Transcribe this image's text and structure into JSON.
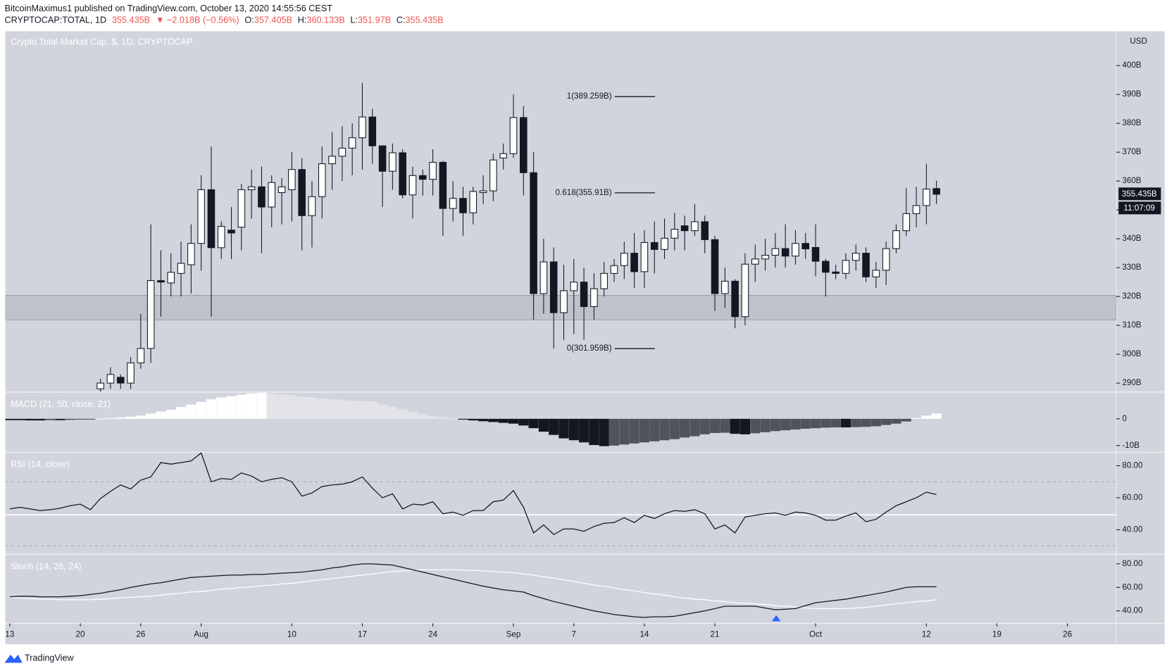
{
  "header": {
    "publisher": "BitcoinMaximus1 published on TradingView.com, October 13, 2020 14:55:56 CEST",
    "symbol": "CRYPTOCAP:TOTAL, 1D",
    "last": "355.435B",
    "change": "▼ −2.018B (−0.56%)",
    "ohlc": [
      {
        "key": "O:",
        "value": "357.405B"
      },
      {
        "key": "H:",
        "value": "360.133B"
      },
      {
        "key": "L:",
        "value": "351.97B"
      },
      {
        "key": "C:",
        "value": "355.435B"
      }
    ]
  },
  "footer": {
    "brand": "TradingView"
  },
  "chart_data": [
    {
      "type": "candlestick",
      "title": "Crypto Total Market Cap, $, 1D, CRYPTOCAP",
      "currency": "USD",
      "x": [
        "Jul 13",
        "Jul 14",
        "Jul 15",
        "Jul 16",
        "Jul 17",
        "Jul 18",
        "Jul 19",
        "Jul 20",
        "Jul 21",
        "Jul 22",
        "Jul 23",
        "Jul 24",
        "Jul 25",
        "Jul 26",
        "Jul 27",
        "Jul 28",
        "Jul 29",
        "Jul 30",
        "Jul 31",
        "Aug 1",
        "Aug 2",
        "Aug 3",
        "Aug 4",
        "Aug 5",
        "Aug 6",
        "Aug 7",
        "Aug 8",
        "Aug 9",
        "Aug 10",
        "Aug 11",
        "Aug 12",
        "Aug 13",
        "Aug 14",
        "Aug 15",
        "Aug 16",
        "Aug 17",
        "Aug 18",
        "Aug 19",
        "Aug 20",
        "Aug 21",
        "Aug 22",
        "Aug 23",
        "Aug 24",
        "Aug 25",
        "Aug 26",
        "Aug 27",
        "Aug 28",
        "Aug 29",
        "Aug 30",
        "Aug 31",
        "Sep 1",
        "Sep 2",
        "Sep 3",
        "Sep 4",
        "Sep 5",
        "Sep 6",
        "Sep 7",
        "Sep 8",
        "Sep 9",
        "Sep 10",
        "Sep 11",
        "Sep 12",
        "Sep 13",
        "Sep 14",
        "Sep 15",
        "Sep 16",
        "Sep 17",
        "Sep 18",
        "Sep 19",
        "Sep 20",
        "Sep 21",
        "Sep 22",
        "Sep 23",
        "Sep 24",
        "Sep 25",
        "Sep 26",
        "Sep 27",
        "Sep 28",
        "Sep 29",
        "Sep 30",
        "Oct 1",
        "Oct 2",
        "Oct 3",
        "Oct 4",
        "Oct 5",
        "Oct 6",
        "Oct 7",
        "Oct 8",
        "Oct 9",
        "Oct 10",
        "Oct 11",
        "Oct 12",
        "Oct 13"
      ],
      "open": [
        null,
        null,
        null,
        null,
        null,
        null,
        null,
        null,
        null,
        288,
        290,
        292,
        290,
        297,
        302,
        325.5,
        324.7,
        328,
        331,
        338.4,
        357,
        336.9,
        343,
        344,
        357,
        358,
        351,
        356,
        357,
        364,
        348,
        354.6,
        366,
        368.6,
        371.4,
        375,
        382.2,
        372.2,
        363.4,
        369.8,
        355.2,
        361.9,
        360.6,
        366.5,
        350.5,
        354,
        349,
        356,
        356.6,
        368,
        369.5,
        382,
        362.9,
        321,
        332,
        314.4,
        322,
        325,
        316.5,
        322.7,
        328,
        330.7,
        335,
        328.6,
        338.7,
        336.3,
        340.2,
        344.5,
        342.8,
        345.9,
        339.7,
        321,
        325.3,
        313,
        331.2,
        333,
        334.3,
        336.6,
        334,
        338.4,
        337,
        332.2,
        328.5,
        328,
        332.5,
        335,
        326.8,
        329.1,
        336.6,
        342.8,
        348.7,
        351.5,
        357.405
      ],
      "high": [
        null,
        null,
        null,
        null,
        null,
        null,
        null,
        null,
        null,
        291.5,
        295.5,
        293,
        299,
        314,
        345,
        336,
        335,
        339,
        345,
        362,
        372,
        346,
        351,
        359,
        364,
        365,
        362,
        361,
        370,
        368,
        360,
        372,
        377,
        379,
        380,
        394,
        385,
        371,
        373,
        371,
        365,
        364,
        371,
        367,
        360,
        358,
        358,
        362,
        369.5,
        373,
        390,
        386,
        370,
        340,
        337,
        331,
        333,
        330,
        328,
        332,
        333,
        339,
        342,
        343,
        346,
        347,
        349,
        348,
        352,
        348,
        341,
        330,
        326,
        335,
        338,
        340,
        342,
        345,
        343,
        342,
        345,
        333,
        331,
        335,
        338,
        337,
        332,
        339,
        345,
        357.5,
        358,
        366,
        360.133
      ],
      "low": [
        null,
        null,
        null,
        null,
        null,
        null,
        null,
        null,
        null,
        287,
        288,
        288,
        288,
        295,
        297,
        313,
        320,
        320,
        321,
        329,
        313,
        333,
        333,
        336,
        347,
        335,
        344,
        345,
        346,
        336,
        337,
        347,
        357,
        360,
        362,
        364,
        366,
        351,
        357,
        354,
        347,
        355,
        355,
        341,
        346,
        341,
        345,
        352,
        353,
        364,
        368,
        355,
        312,
        314,
        302,
        305,
        307,
        305,
        312,
        320,
        325,
        326,
        323,
        323,
        328,
        333,
        336,
        336,
        341,
        335,
        315,
        316,
        309,
        310,
        325,
        329,
        330,
        330,
        331,
        333,
        327,
        320,
        326,
        326,
        329,
        325,
        323,
        324,
        335,
        341,
        344,
        345,
        351.97
      ],
      "close": [
        null,
        null,
        null,
        null,
        null,
        null,
        null,
        null,
        null,
        290,
        293,
        290,
        297,
        302,
        325.5,
        325,
        328.4,
        331.5,
        338.4,
        357,
        336.9,
        344.3,
        342,
        357,
        358,
        351,
        359.5,
        358,
        364,
        348,
        354.6,
        366,
        368.6,
        371.4,
        375,
        382.2,
        372.2,
        363.4,
        369.8,
        355.2,
        361.9,
        360.6,
        366.5,
        350.5,
        354,
        349,
        356.4,
        356.6,
        367.3,
        369.5,
        382,
        362.9,
        321,
        332,
        314.4,
        322,
        325,
        316.5,
        322.7,
        328,
        330.7,
        335,
        328.6,
        338.7,
        336.3,
        340.2,
        343.3,
        342.8,
        345.9,
        339.7,
        321,
        325.3,
        313,
        331.2,
        333,
        334.3,
        336.6,
        334,
        338.4,
        336.5,
        332.2,
        328.4,
        328,
        332.5,
        335,
        326.8,
        329.1,
        336.6,
        342.8,
        348.7,
        351.5,
        357.2,
        355.435
      ],
      "colors": {
        "up": "#ffffff",
        "down": "#131722",
        "wick": "#131722"
      },
      "ylim": [
        286.9,
        411.9
      ],
      "yticks": [
        {
          "value": 290,
          "label": "290B"
        },
        {
          "value": 300,
          "label": "300B"
        },
        {
          "value": 310,
          "label": "310B"
        },
        {
          "value": 320,
          "label": "320B"
        },
        {
          "value": 330,
          "label": "330B"
        },
        {
          "value": 340,
          "label": "340B"
        },
        {
          "value": 350,
          "label": "350B"
        },
        {
          "value": 360,
          "label": "360B"
        },
        {
          "value": 370,
          "label": "370B"
        },
        {
          "value": 380,
          "label": "380B"
        },
        {
          "value": 390,
          "label": "390B"
        },
        {
          "value": 400,
          "label": "400B"
        }
      ],
      "xlim": [
        "Jul 13",
        "Oct 31"
      ],
      "xticks": [
        {
          "value": "Jul 13",
          "label": "13"
        },
        {
          "value": "Jul 20",
          "label": "20"
        },
        {
          "value": "Jul 26",
          "label": "26"
        },
        {
          "value": "Aug 1",
          "label": "Aug"
        },
        {
          "value": "Aug 10",
          "label": "10"
        },
        {
          "value": "Aug 17",
          "label": "17"
        },
        {
          "value": "Aug 24",
          "label": "24"
        },
        {
          "value": "Sep 1",
          "label": "Sep"
        },
        {
          "value": "Sep 7",
          "label": "7"
        },
        {
          "value": "Sep 14",
          "label": "14"
        },
        {
          "value": "Sep 21",
          "label": "21"
        },
        {
          "value": "Oct 1",
          "label": "Oct"
        },
        {
          "value": "Oct 12",
          "label": "12"
        },
        {
          "value": "Oct 19",
          "label": "19"
        },
        {
          "value": "Oct 26",
          "label": "26"
        }
      ],
      "support_zone": {
        "range": [
          311.9,
          320.4
        ],
        "color": "#bfc2ca"
      },
      "fib_levels": [
        {
          "value": 389.259,
          "label": "1(389.259B)"
        },
        {
          "value": 355.91,
          "label": "0.618(355.91B)"
        },
        {
          "value": 301.959,
          "label": "0(301.959B)"
        }
      ],
      "last_label": "355.435B",
      "countdown": "11:07:09"
    },
    {
      "type": "histogram",
      "title": "MACD (21, 50, close, 21)",
      "values": [
        -0.5,
        -0.5,
        -0.6,
        -0.6,
        -0.5,
        -0.5,
        -0.4,
        -0.3,
        -0.2,
        0.1,
        0.3,
        0.5,
        0.8,
        1.2,
        1.9,
        2.7,
        3.4,
        4.4,
        5.3,
        6.3,
        7.3,
        8.0,
        8.5,
        9.0,
        9.5,
        9.7,
        9.4,
        9.0,
        8.8,
        8.3,
        8.0,
        7.6,
        7.3,
        7.0,
        6.8,
        6.6,
        6.5,
        5.3,
        4.5,
        3.5,
        2.6,
        1.8,
        1.0,
        0.6,
        0.2,
        -0.3,
        -0.6,
        -0.9,
        -1.2,
        -1.5,
        -1.8,
        -2.5,
        -3.5,
        -4.8,
        -6.0,
        -7.3,
        -8.0,
        -8.8,
        -9.8,
        -10.2,
        -10.0,
        -9.6,
        -9.2,
        -8.8,
        -8.4,
        -8.0,
        -7.6,
        -7.0,
        -6.5,
        -5.8,
        -5.3,
        -5.2,
        -5.6,
        -5.8,
        -5.4,
        -5.0,
        -4.6,
        -4.3,
        -4.0,
        -3.7,
        -3.5,
        -3.3,
        -3.2,
        -3.2,
        -3.1,
        -3.0,
        -2.8,
        -2.3,
        -1.8,
        -1.0,
        0.3,
        1.2,
        2.0
      ],
      "colors": {
        "pos_up": "#ffffff",
        "pos_down": "#e3e4e9",
        "neg_down": "#131722",
        "neg_up": "#50535e"
      },
      "ylim": [
        -12.5,
        10
      ],
      "yticks": [
        0,
        {
          "value": -10,
          "label": "-10B"
        }
      ]
    },
    {
      "type": "line",
      "title": "RSI (14, close)",
      "series": [
        {
          "color": "#131722",
          "values": [
            53,
            54,
            53,
            52,
            52.5,
            53.5,
            55,
            56,
            52.5,
            59.5,
            64,
            68,
            65.5,
            71,
            73,
            82,
            81,
            82,
            83,
            88,
            70,
            72,
            71.5,
            75.5,
            73.5,
            70,
            71.5,
            72.5,
            70,
            61,
            63,
            67,
            68,
            68.5,
            70,
            73,
            66,
            60,
            62.5,
            53,
            56,
            55.5,
            57.5,
            50,
            51,
            49,
            52,
            52,
            57.5,
            58.5,
            64.5,
            54,
            38,
            43,
            37,
            40.5,
            40.5,
            39,
            42,
            44,
            44.5,
            47.5,
            44.5,
            49,
            47,
            50,
            52,
            51.5,
            52.5,
            50,
            40.5,
            43,
            38,
            48,
            49,
            50,
            50.5,
            49,
            51,
            50.5,
            49,
            46,
            46,
            48.5,
            50.5,
            45,
            46.5,
            51,
            55,
            57.5,
            60,
            63.5,
            62
          ]
        }
      ],
      "ylim": [
        24.7,
        88.4
      ],
      "yticks": [
        {
          "value": 40,
          "label": "40.00"
        },
        {
          "value": 60,
          "label": "60.00"
        },
        {
          "value": 80,
          "label": "80.00"
        }
      ],
      "bands": [
        70,
        30
      ],
      "hline": {
        "value": 49.3,
        "color": "#ffffff"
      }
    },
    {
      "type": "line",
      "title": "Stoch (14, 28, 24)",
      "series": [
        {
          "color": "#ffffff",
          "values": [
            51.5,
            51,
            50.5,
            50,
            50,
            49.5,
            49.5,
            49.5,
            49.5,
            50,
            50.5,
            51,
            51.5,
            52,
            52.5,
            53.5,
            54.5,
            55,
            56,
            56.5,
            57.5,
            58.5,
            59,
            60,
            60.5,
            61.5,
            62,
            63,
            63.5,
            64.5,
            65.5,
            66.5,
            67.5,
            68.5,
            69.5,
            70.5,
            71.5,
            72.5,
            73.5,
            74,
            74.5,
            75,
            75,
            75,
            75,
            74.5,
            74.5,
            74,
            73.5,
            73,
            72.5,
            71.5,
            70.5,
            69,
            68,
            66.5,
            65,
            63.5,
            62,
            61,
            59.5,
            58,
            57,
            55.5,
            54.5,
            53.5,
            52,
            51,
            50,
            49.5,
            48.5,
            48,
            47,
            46.5,
            46,
            45.5,
            44.5,
            44,
            43.5,
            42.5,
            42,
            42,
            42,
            42,
            42.5,
            43,
            44,
            45,
            46,
            47,
            48,
            48.5,
            49.5
          ]
        },
        {
          "color": "#131722",
          "values": [
            52,
            52.5,
            52.5,
            52,
            52,
            52,
            52.5,
            53,
            54,
            55,
            56.5,
            58,
            60,
            61.5,
            63,
            64,
            65.5,
            67,
            68.5,
            69,
            69.5,
            70,
            70.5,
            70.5,
            71,
            71,
            71.5,
            72,
            72.5,
            73,
            74,
            75,
            76.5,
            77.5,
            79,
            80,
            80,
            79.5,
            79,
            77,
            75,
            73,
            71,
            69,
            67,
            65,
            63,
            61,
            59.5,
            58,
            57,
            56,
            53,
            50.5,
            48,
            46,
            44,
            42,
            40,
            38.5,
            37,
            36,
            35,
            34.5,
            35,
            35,
            35.5,
            37,
            38.5,
            40,
            42,
            44,
            44,
            44,
            44,
            42.5,
            41,
            41.5,
            42,
            44.5,
            47,
            48,
            49,
            50,
            51.5,
            53,
            54.5,
            56,
            58,
            60,
            60.5,
            60.5,
            60.5
          ]
        }
      ],
      "ylim": [
        29.4,
        88.2
      ],
      "yticks": [
        {
          "value": 40,
          "label": "40.00"
        },
        {
          "value": 60,
          "label": "60.00"
        },
        {
          "value": 80,
          "label": "80.00"
        }
      ]
    }
  ]
}
